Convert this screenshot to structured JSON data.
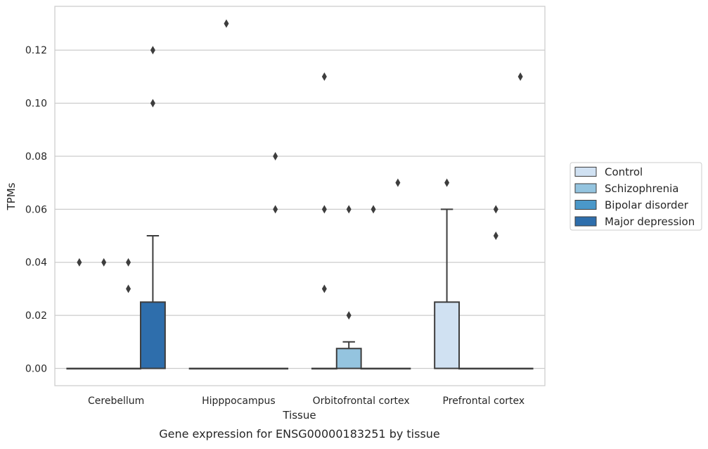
{
  "chart_data": {
    "type": "box",
    "title": "Gene expression for ENSG00000183251 by tissue",
    "xlabel": "Tissue",
    "ylabel": "TPMs",
    "ylim": [
      -0.0065,
      0.1365
    ],
    "yticks": [
      0.0,
      0.02,
      0.04,
      0.06,
      0.08,
      0.1,
      0.12
    ],
    "ytick_labels": [
      "0.00",
      "0.02",
      "0.04",
      "0.06",
      "0.08",
      "0.10",
      "0.12"
    ],
    "categories": [
      "Cerebellum",
      "Hipppocampus",
      "Orbitofrontal cortex",
      "Prefrontal cortex"
    ],
    "grid": "horizontal",
    "legend_position": "right",
    "series": [
      {
        "name": "Control",
        "color": "#d0e1f2",
        "boxes": [
          {
            "q1": 0,
            "median": 0,
            "q3": 0,
            "whisker_low": 0,
            "whisker_high": 0,
            "outliers": [
              0.04
            ]
          },
          {
            "q1": 0,
            "median": 0,
            "q3": 0,
            "whisker_low": 0,
            "whisker_high": 0,
            "outliers": []
          },
          {
            "q1": 0,
            "median": 0,
            "q3": 0,
            "whisker_low": 0,
            "whisker_high": 0,
            "outliers": [
              0.06,
              0.03,
              0.11
            ]
          },
          {
            "q1": 0,
            "median": 0,
            "q3": 0.025,
            "whisker_low": 0,
            "whisker_high": 0.06,
            "outliers": [
              0.07
            ]
          }
        ]
      },
      {
        "name": "Schizophrenia",
        "color": "#94c4df",
        "boxes": [
          {
            "q1": 0,
            "median": 0,
            "q3": 0,
            "whisker_low": 0,
            "whisker_high": 0,
            "outliers": [
              0.04
            ]
          },
          {
            "q1": 0,
            "median": 0,
            "q3": 0,
            "whisker_low": 0,
            "whisker_high": 0,
            "outliers": [
              0.13
            ]
          },
          {
            "q1": 0,
            "median": 0,
            "q3": 0.0075,
            "whisker_low": 0,
            "whisker_high": 0.01,
            "outliers": [
              0.06,
              0.02
            ]
          },
          {
            "q1": 0,
            "median": 0,
            "q3": 0,
            "whisker_low": 0,
            "whisker_high": 0,
            "outliers": []
          }
        ]
      },
      {
        "name": "Bipolar disorder",
        "color": "#4a98c9",
        "boxes": [
          {
            "q1": 0,
            "median": 0,
            "q3": 0,
            "whisker_low": 0,
            "whisker_high": 0,
            "outliers": [
              0.04,
              0.03
            ]
          },
          {
            "q1": 0,
            "median": 0,
            "q3": 0,
            "whisker_low": 0,
            "whisker_high": 0,
            "outliers": []
          },
          {
            "q1": 0,
            "median": 0,
            "q3": 0,
            "whisker_low": 0,
            "whisker_high": 0,
            "outliers": [
              0.06
            ]
          },
          {
            "q1": 0,
            "median": 0,
            "q3": 0,
            "whisker_low": 0,
            "whisker_high": 0,
            "outliers": [
              0.06,
              0.05
            ]
          }
        ]
      },
      {
        "name": "Major depression",
        "color": "#2e6eac",
        "boxes": [
          {
            "q1": 0,
            "median": 0,
            "q3": 0.025,
            "whisker_low": 0,
            "whisker_high": 0.05,
            "outliers": [
              0.1,
              0.12
            ]
          },
          {
            "q1": 0,
            "median": 0,
            "q3": 0,
            "whisker_low": 0,
            "whisker_high": 0,
            "outliers": [
              0.06,
              0.08
            ]
          },
          {
            "q1": 0,
            "median": 0,
            "q3": 0,
            "whisker_low": 0,
            "whisker_high": 0,
            "outliers": [
              0.07
            ]
          },
          {
            "q1": 0,
            "median": 0,
            "q3": 0,
            "whisker_low": 0,
            "whisker_high": 0,
            "outliers": [
              0.11
            ]
          }
        ]
      }
    ]
  }
}
